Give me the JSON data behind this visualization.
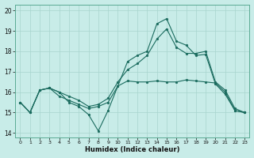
{
  "xlabel": "Humidex (Indice chaleur)",
  "background_color": "#c8ece8",
  "grid_color": "#a8d4ce",
  "line_color": "#1a6b5e",
  "xlim": [
    -0.5,
    23.5
  ],
  "ylim": [
    13.8,
    20.3
  ],
  "yticks": [
    14,
    15,
    16,
    17,
    18,
    19,
    20
  ],
  "xticks": [
    0,
    1,
    2,
    3,
    4,
    5,
    6,
    7,
    8,
    9,
    10,
    11,
    12,
    13,
    14,
    15,
    16,
    17,
    18,
    19,
    20,
    21,
    22,
    23
  ],
  "line1": [
    15.5,
    15.0,
    16.1,
    16.2,
    16.0,
    15.5,
    15.3,
    14.9,
    14.1,
    15.1,
    16.3,
    17.5,
    17.8,
    18.0,
    19.35,
    19.6,
    18.5,
    18.3,
    17.8,
    17.85,
    16.4,
    15.9,
    15.1,
    15.0
  ],
  "line2": [
    15.5,
    15.0,
    16.1,
    16.2,
    15.8,
    15.6,
    15.4,
    15.2,
    15.3,
    15.5,
    16.3,
    16.55,
    16.5,
    16.5,
    16.55,
    16.5,
    16.5,
    16.6,
    16.55,
    16.5,
    16.45,
    16.0,
    15.1,
    15.0
  ],
  "line3": [
    15.5,
    15.0,
    16.1,
    16.2,
    16.0,
    15.8,
    15.6,
    15.3,
    15.4,
    15.7,
    16.5,
    17.1,
    17.4,
    17.8,
    18.6,
    19.1,
    18.2,
    17.9,
    17.9,
    18.0,
    16.5,
    16.1,
    15.2,
    15.0
  ],
  "figsize": [
    3.2,
    2.0
  ],
  "dpi": 100
}
